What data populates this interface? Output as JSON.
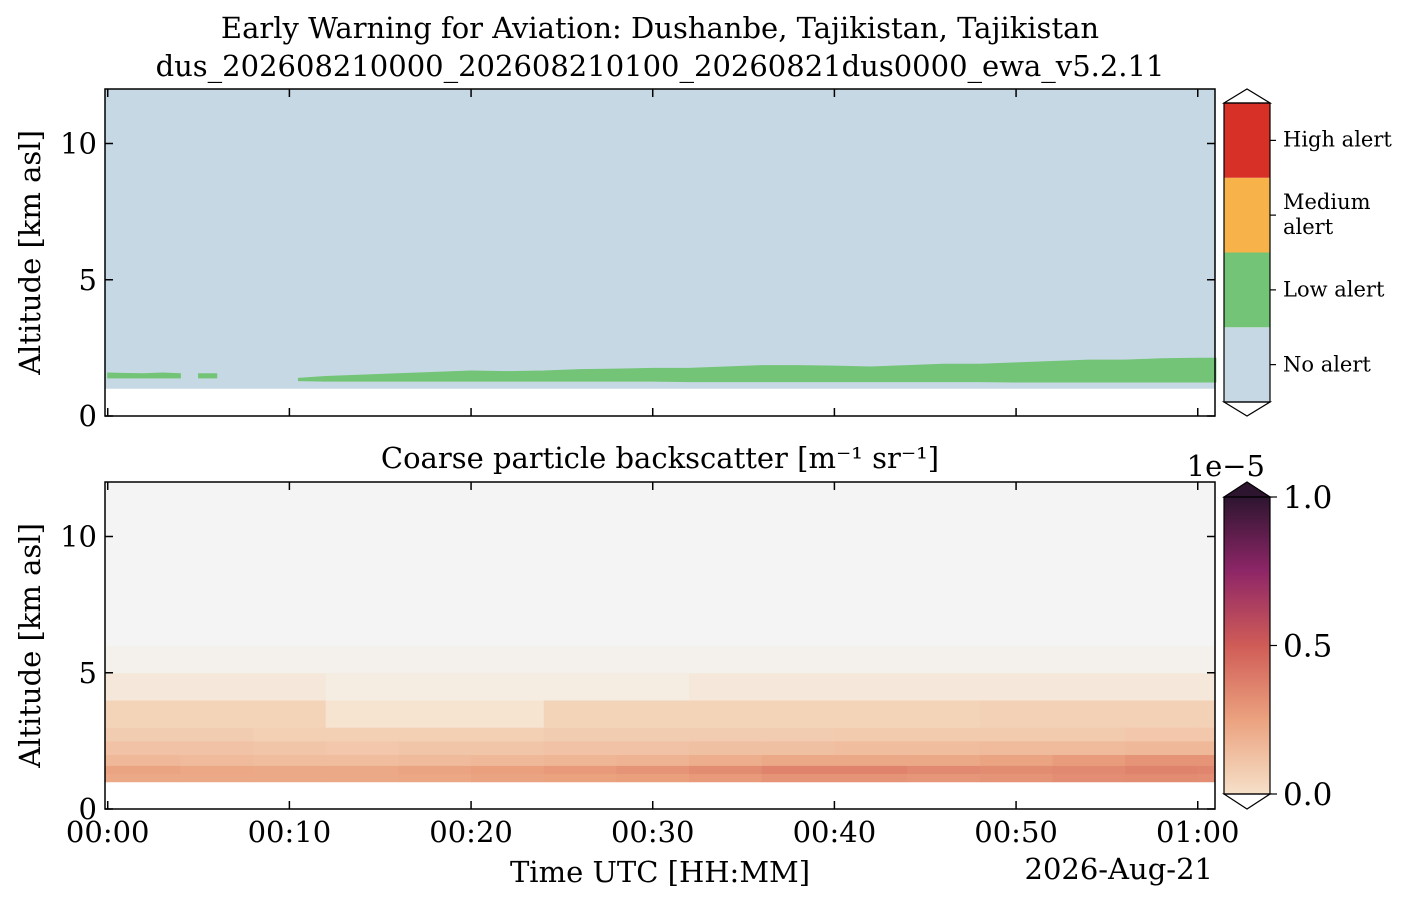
{
  "chart_data": [
    {
      "type": "alert_profile",
      "title": "Early Warning for Aviation: Dushanbe, Tajikistan, Tajikistan",
      "subtitle": "dus_202608210000_202608210100_20260821dus0000_ewa_v5.2.11",
      "ylabel": "Altitude [km asl]",
      "xlim": [
        -0.15,
        60.95
      ],
      "xticks": [
        0,
        10,
        20,
        30,
        40,
        50,
        60
      ],
      "ylim": [
        0,
        12
      ],
      "yticks": [
        0,
        5,
        10
      ],
      "ground": 1.0,
      "x": [
        0,
        1,
        2,
        3,
        4,
        4.5,
        5,
        6,
        6.5,
        10.5,
        12,
        14,
        16,
        18,
        20,
        22,
        24,
        26,
        28,
        30,
        32,
        34,
        36,
        38,
        40,
        42,
        44,
        46,
        48,
        50,
        52,
        54,
        56,
        58,
        60,
        61
      ],
      "band_bottom": [
        1.4,
        1.4,
        1.4,
        1.4,
        1.4,
        null,
        1.4,
        1.4,
        null,
        1.3,
        1.28,
        1.28,
        1.28,
        1.28,
        1.28,
        1.28,
        1.28,
        1.28,
        1.28,
        1.28,
        1.26,
        1.26,
        1.26,
        1.26,
        1.26,
        1.26,
        1.26,
        1.26,
        1.26,
        1.25,
        1.25,
        1.25,
        1.25,
        1.25,
        1.25,
        1.25
      ],
      "band_top": [
        1.58,
        1.56,
        1.55,
        1.58,
        1.55,
        null,
        1.55,
        1.55,
        null,
        1.38,
        1.45,
        1.5,
        1.55,
        1.6,
        1.65,
        1.63,
        1.65,
        1.7,
        1.72,
        1.75,
        1.75,
        1.8,
        1.85,
        1.85,
        1.83,
        1.8,
        1.85,
        1.9,
        1.9,
        1.95,
        2.0,
        2.05,
        2.05,
        2.1,
        2.12,
        2.12
      ],
      "classes": [
        "No alert",
        "Low alert",
        "Medium alert",
        "High alert"
      ],
      "colors": [
        "#c5d8e4",
        "#73c476",
        "#f7b34a",
        "#d73027"
      ]
    },
    {
      "type": "heatmap",
      "title": "Coarse particle backscatter [m⁻¹ sr⁻¹]",
      "ylabel": "Altitude [km asl]",
      "xlabel": "Time UTC [HH:MM]",
      "date_label": "2026-Aug-21",
      "xlim": [
        -0.15,
        60.95
      ],
      "xticks": [
        {
          "value": 0,
          "label": "00:00"
        },
        {
          "value": 10,
          "label": "00:10"
        },
        {
          "value": 20,
          "label": "00:20"
        },
        {
          "value": 30,
          "label": "00:30"
        },
        {
          "value": 40,
          "label": "00:40"
        },
        {
          "value": 50,
          "label": "00:50"
        },
        {
          "value": 60,
          "label": "01:00"
        }
      ],
      "ylim": [
        0,
        12
      ],
      "yticks": [
        0,
        5,
        10
      ],
      "xbins": [
        -0.15,
        4,
        8,
        12,
        16,
        20,
        24,
        28,
        32,
        36,
        40,
        44,
        48,
        52,
        56,
        60,
        60.95
      ],
      "ybins": [
        1.0,
        1.3,
        1.6,
        2.0,
        2.5,
        3,
        4,
        5,
        6,
        8,
        12
      ],
      "z": [
        [
          0.22,
          0.22,
          0.22,
          0.22,
          0.23,
          0.24,
          0.25,
          0.26,
          0.28,
          0.3,
          0.3,
          0.29,
          0.3,
          0.32,
          0.33,
          0.32
        ],
        [
          0.24,
          0.23,
          0.22,
          0.22,
          0.24,
          0.26,
          0.28,
          0.3,
          0.33,
          0.36,
          0.36,
          0.34,
          0.33,
          0.34,
          0.36,
          0.35
        ],
        [
          0.16,
          0.15,
          0.14,
          0.14,
          0.15,
          0.16,
          0.17,
          0.18,
          0.2,
          0.22,
          0.22,
          0.22,
          0.24,
          0.27,
          0.3,
          0.3
        ],
        [
          0.12,
          0.12,
          0.11,
          0.1,
          0.11,
          0.11,
          0.12,
          0.12,
          0.13,
          0.13,
          0.14,
          0.14,
          0.15,
          0.15,
          0.16,
          0.16
        ],
        [
          0.08,
          0.08,
          0.07,
          0.07,
          0.07,
          0.07,
          0.08,
          0.08,
          0.08,
          0.08,
          0.09,
          0.09,
          0.09,
          0.09,
          0.1,
          0.1
        ],
        [
          0.05,
          0.05,
          0.05,
          0.04,
          0.04,
          0.04,
          0.05,
          0.05,
          0.05,
          0.05,
          0.05,
          0.05,
          0.06,
          0.06,
          0.06,
          0.06
        ],
        [
          0.03,
          0.03,
          0.03,
          0.02,
          0.02,
          0.02,
          0.02,
          0.02,
          0.03,
          0.03,
          0.03,
          0.03,
          0.03,
          0.03,
          0.03,
          0.03
        ],
        [
          0.01,
          0.01,
          0.01,
          0.01,
          0.01,
          0.01,
          0.01,
          0.01,
          0.01,
          0.01,
          0.01,
          0.01,
          0.01,
          0.01,
          0.01,
          0.01
        ],
        [
          0,
          0,
          0,
          0,
          0,
          0,
          0,
          0,
          0,
          0,
          0,
          0,
          0,
          0,
          0,
          0
        ],
        [
          0,
          0,
          0,
          0,
          0,
          0,
          0,
          0,
          0,
          0,
          0,
          0,
          0,
          0,
          0,
          0
        ]
      ],
      "clim": [
        0,
        1
      ],
      "cticks": [
        {
          "value": 0,
          "label": "0.0"
        },
        {
          "value": 0.5,
          "label": "0.5"
        },
        {
          "value": 1,
          "label": "1.0"
        }
      ],
      "coffset": "1e−5",
      "colormap": [
        "#f6e0c8",
        "#eba27f",
        "#d05c57",
        "#8e2667",
        "#2d1530"
      ],
      "background": "#f4f4f4"
    }
  ]
}
